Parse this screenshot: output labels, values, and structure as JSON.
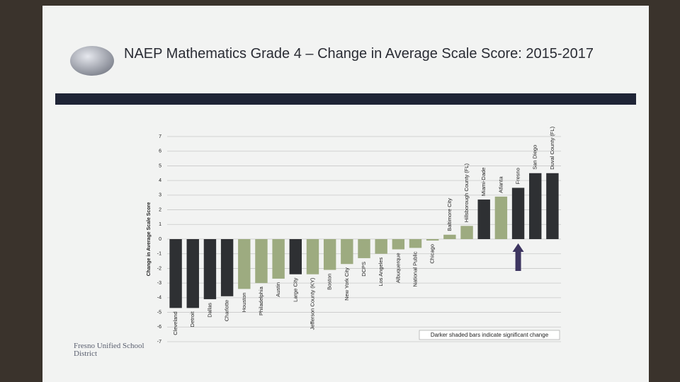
{
  "chart_data": {
    "type": "bar",
    "title": "NAEP Mathematics Grade 4 – Change in Average Scale Score: 2015-2017",
    "y_label": "Change in Average Scale Score",
    "annotation": "Darker shaded bars indicate significant change",
    "categories": [
      "Cleveland",
      "Detroit",
      "Dallas",
      "Charlotte",
      "Houston",
      "Philadelphia",
      "Austin",
      "Large City",
      "Jefferson County (KY)",
      "Boston",
      "New York City",
      "DCPS",
      "Los Angeles",
      "Albuquerque",
      "National Public",
      "Chicago",
      "Baltimore City",
      "Hillsborough County (FL)",
      "Miami-Dade",
      "Atlanta",
      "Fresno",
      "San Diego",
      "Duval County (FL)"
    ],
    "values": [
      -4.7,
      -4.7,
      -4.1,
      -3.9,
      -3.4,
      -3.0,
      -2.7,
      -2.4,
      -2.4,
      -2.1,
      -1.7,
      -1.3,
      -1.0,
      -0.7,
      -0.6,
      -0.1,
      0.3,
      0.9,
      2.7,
      2.9,
      3.5,
      4.5,
      4.5
    ],
    "colors": [
      "#2e3033",
      "#2e3033",
      "#2e3033",
      "#2e3033",
      "#9dab80",
      "#9dab80",
      "#9dab80",
      "#2e3033",
      "#9dab80",
      "#9dab80",
      "#9dab80",
      "#9dab80",
      "#9dab80",
      "#9dab80",
      "#9dab80",
      "#9dab80",
      "#9dab80",
      "#9dab80",
      "#2e3033",
      "#9dab80",
      "#2e3033",
      "#2e3033",
      "#2e3033"
    ],
    "ylim": [
      -7,
      7
    ],
    "yticks": [
      -7,
      -6,
      -5,
      -4,
      -3,
      -2,
      -1,
      0,
      1,
      2,
      3,
      4,
      5,
      6,
      7
    ],
    "grid": true
  },
  "logo": "Fresno Unified School District"
}
